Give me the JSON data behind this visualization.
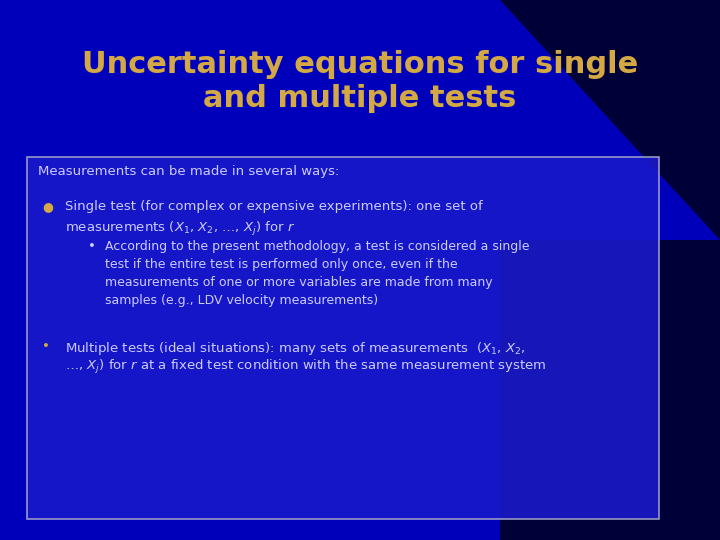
{
  "title_line1": "Uncertainty equations for single",
  "title_line2": "and multiple tests",
  "title_color": "#D4A843",
  "title_fontsize": 22,
  "bg_color": "#0000cc",
  "bg_color_topleft": "#1a1acc",
  "bg_color_dark": "#000033",
  "box_facecolor": "#1a1acc",
  "box_edgecolor": "#aaaacc",
  "text_color": "#ccccff",
  "header_text": "Measurements can be made in several ways:",
  "bullet1_line1": "Single test (for complex or expensive experiments): one set of",
  "bullet1_line2": "measurements ($X_1$, $X_2$, …, $X_j$) for $r$",
  "sub_bullet_line1": "According to the present methodology, a test is considered a single",
  "sub_bullet_line2": "test if the entire test is performed only once, even if the",
  "sub_bullet_line3": "measurements of one or more variables are made from many",
  "sub_bullet_line4": "samples (e.g., LDV velocity measurements)",
  "bullet2_line1": "Multiple tests (ideal situations): many sets of measurements  ($X_1$, $X_2$,",
  "bullet2_line2": "…, $X_j$) for $r$ at a fixed test condition with the same measurement system",
  "arc_color1": "#3355ee",
  "arc_color2": "#2244dd",
  "arc_color3": "#4466ff"
}
